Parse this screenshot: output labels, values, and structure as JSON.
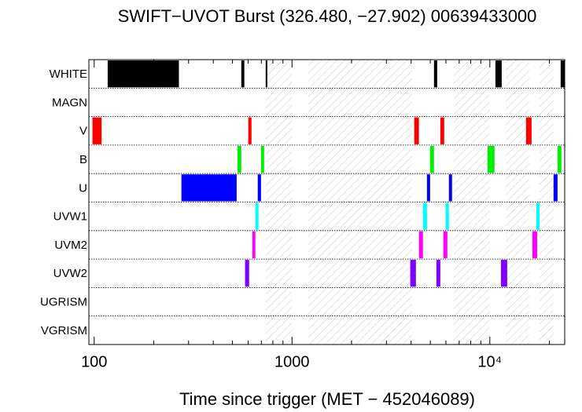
{
  "chart_data": {
    "type": "timeline",
    "title": "SWIFT−UVOT Burst (326.480, −27.902) 00639433000",
    "x_label": "Time since trigger (MET − 452046089)",
    "log_x": true,
    "xlim": [
      94,
      23900
    ],
    "xticks": [
      100,
      1000,
      {
        "value": 10000,
        "label": "10⁴"
      }
    ],
    "xminorticks": [
      200,
      300,
      400,
      500,
      600,
      700,
      800,
      900,
      2000,
      3000,
      4000,
      5000,
      6000,
      7000,
      8000,
      9000,
      20000
    ],
    "hatch_color": "#c8c8c8",
    "hatched_intervals": [
      [
        736,
        1000
      ],
      [
        1206,
        4036
      ],
      [
        6560,
        10000
      ],
      [
        12020,
        15820
      ],
      [
        17830,
        20990
      ]
    ],
    "series": [
      {
        "name": "WHITE",
        "color": "#000000",
        "intervals": [
          [
            117,
            268
          ],
          [
            554,
            574
          ],
          [
            736,
            750
          ],
          [
            5220,
            5420
          ],
          [
            10670,
            11480
          ],
          [
            22800,
            23900
          ]
        ]
      },
      {
        "name": "MAGN",
        "color": "#808080",
        "intervals": []
      },
      {
        "name": "V",
        "color": "#ff0000",
        "intervals": [
          [
            98,
            109
          ],
          [
            601,
            624
          ],
          [
            4150,
            4380
          ],
          [
            5620,
            5880
          ],
          [
            15240,
            16250
          ]
        ]
      },
      {
        "name": "B",
        "color": "#00ee00",
        "intervals": [
          [
            530,
            554
          ],
          [
            697,
            723
          ],
          [
            4990,
            5220
          ],
          [
            9730,
            10560
          ],
          [
            21990,
            23000
          ]
        ]
      },
      {
        "name": "U",
        "color": "#0000ff",
        "intervals": [
          [
            276,
            525
          ],
          [
            671,
            697
          ],
          [
            4810,
            4990
          ],
          [
            6210,
            6440
          ],
          [
            20990,
            21990
          ]
        ]
      },
      {
        "name": "UVW1",
        "color": "#00ffff",
        "intervals": [
          [
            653,
            677
          ],
          [
            4590,
            4810
          ],
          [
            5980,
            6210
          ],
          [
            17180,
            17830
          ]
        ]
      },
      {
        "name": "UVM2",
        "color": "#ff00ff",
        "intervals": [
          [
            630,
            653
          ],
          [
            4385,
            4590
          ],
          [
            5820,
            6100
          ],
          [
            16400,
            17340
          ]
        ]
      },
      {
        "name": "UVW2",
        "color": "#8000ff",
        "intervals": [
          [
            579,
            607
          ],
          [
            3960,
            4230
          ],
          [
            5370,
            5620
          ],
          [
            11380,
            12240
          ]
        ]
      },
      {
        "name": "UGRISM",
        "color": "#808080",
        "intervals": []
      },
      {
        "name": "VGRISM",
        "color": "#808080",
        "intervals": []
      }
    ]
  }
}
